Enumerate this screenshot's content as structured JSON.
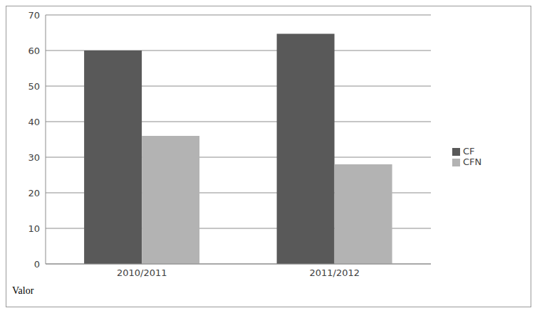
{
  "chart_data": {
    "type": "bar",
    "annotation": "Valor",
    "categories": [
      "2010/2011",
      "2011/2012"
    ],
    "series": [
      {
        "name": "CF",
        "color": "#595959",
        "values": [
          60,
          64.7
        ]
      },
      {
        "name": "CFN",
        "color": "#b3b3b3",
        "values": [
          36,
          28
        ]
      }
    ],
    "ylim": [
      0,
      70
    ],
    "yticks": [
      0,
      10,
      20,
      30,
      40,
      50,
      60,
      70
    ],
    "grid": true,
    "legend": "right"
  }
}
